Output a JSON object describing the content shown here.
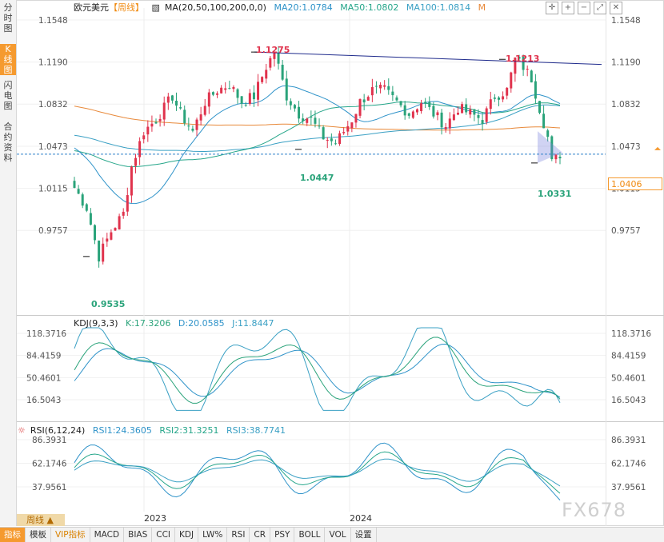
{
  "left_tabs": [
    {
      "label": "分时图",
      "active": false
    },
    {
      "label": "K线图",
      "active": true
    },
    {
      "label": "闪电图",
      "active": false
    },
    {
      "label": "合约资料",
      "active": false
    }
  ],
  "main_legend": {
    "symbol": "欧元美元",
    "period": "【周线】",
    "ma_label": "MA(20,50,100,200,0,0)",
    "ma20": "MA20:1.0784",
    "ma50": "MA50:1.0802",
    "ma100": "MA100:1.0814",
    "m": "M"
  },
  "kdj_legend": {
    "label": "KDJ(9,3,3)",
    "k": "K:17.3206",
    "d": "D:20.0585",
    "j": "J:11.8447"
  },
  "rsi_legend": {
    "label": "RSI(6,12,24)",
    "rsi1": "RSI1:24.3605",
    "rsi2": "RSI2:31.3251",
    "rsi3": "RSI3:38.7741"
  },
  "current_price": "1.0406",
  "period_button": "周线 ▲",
  "watermark": "FX678",
  "bottom_tabs": [
    {
      "label": "指标",
      "active": true,
      "vip": false
    },
    {
      "label": "模板",
      "active": false,
      "vip": false
    },
    {
      "label": "VIP指标",
      "active": false,
      "vip": true
    },
    {
      "label": "MACD",
      "active": false,
      "vip": false
    },
    {
      "label": "BIAS",
      "active": false,
      "vip": false
    },
    {
      "label": "CCI",
      "active": false,
      "vip": false
    },
    {
      "label": "KDJ",
      "active": false,
      "vip": false
    },
    {
      "label": "LW%",
      "active": false,
      "vip": false
    },
    {
      "label": "RSI",
      "active": false,
      "vip": false
    },
    {
      "label": "CR",
      "active": false,
      "vip": false
    },
    {
      "label": "PSY",
      "active": false,
      "vip": false
    },
    {
      "label": "BOLL",
      "active": false,
      "vip": false
    },
    {
      "label": "VOL",
      "active": false,
      "vip": false
    },
    {
      "label": "设置",
      "active": false,
      "vip": false
    }
  ],
  "toolbar_icons": [
    "crosshair-icon",
    "zoom-in-icon",
    "zoom-out-icon",
    "fullscreen-icon",
    "close-icon"
  ],
  "chart_data": [
    {
      "type": "candlestick",
      "title": "欧元美元 周线",
      "ylim": [
        0.94,
        1.16
      ],
      "y_ticks": [
        "1.1548",
        "1.1190",
        "1.0832",
        "1.0473",
        "1.0115",
        "0.9757"
      ],
      "x_labels": [
        "2023",
        "2024"
      ],
      "annotations": [
        {
          "label": "0.9535",
          "value": 0.9535,
          "color": "#2aa37a"
        },
        {
          "label": "1.1275",
          "value": 1.1275,
          "color": "#e0334d"
        },
        {
          "label": "1.0447",
          "value": 1.0447,
          "color": "#2aa37a"
        },
        {
          "label": "1.1213",
          "value": 1.1213,
          "color": "#e0334d"
        },
        {
          "label": "1.0331",
          "value": 1.0331,
          "color": "#2aa37a"
        }
      ],
      "current": 1.0406,
      "series_colors": {
        "up": "#e0334d",
        "down": "#2aa37a",
        "ma20": "#2f93c9",
        "ma50": "#26a68a",
        "ma100": "#3aa0c4",
        "ma200": "#e8893a",
        "trend": "#1f2b8c"
      }
    },
    {
      "type": "line",
      "title": "KDJ(9,3,3)",
      "ylim": [
        0,
        135
      ],
      "y_ticks": [
        "118.3716",
        "84.4159",
        "50.4601",
        "16.5043"
      ],
      "last": {
        "K": 17.3206,
        "D": 20.0585,
        "J": 11.8447
      }
    },
    {
      "type": "line",
      "title": "RSI(6,12,24)",
      "ylim": [
        15,
        95
      ],
      "y_ticks": [
        "86.3931",
        "62.1746",
        "37.9561"
      ],
      "last": {
        "RSI1": 24.3605,
        "RSI2": 31.3251,
        "RSI3": 38.7741
      }
    }
  ]
}
